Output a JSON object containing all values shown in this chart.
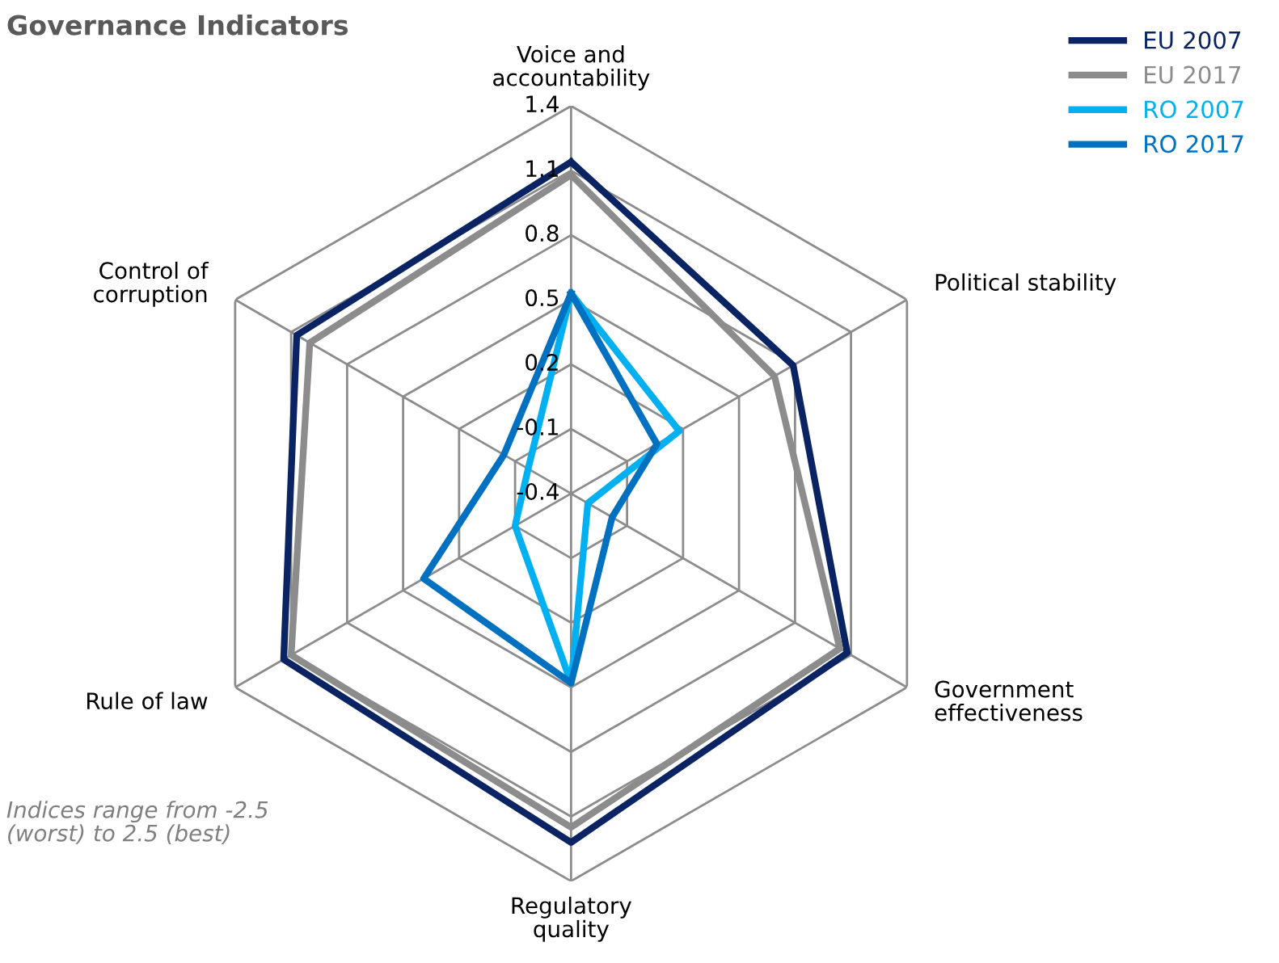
{
  "chart_data": {
    "type": "radar",
    "title": "Governance Indicators",
    "categories": [
      "Voice and\naccountability",
      "Political stability",
      "Government\neffectiveness",
      "Regulatory\nquality",
      "Rule of law",
      "Control of\ncorruption"
    ],
    "series": [
      {
        "name": "EU 2007",
        "color": "#0a2463",
        "values": [
          1.14,
          0.79,
          1.08,
          1.22,
          1.14,
          1.07
        ]
      },
      {
        "name": "EU 2017",
        "color": "#8c8c8c",
        "values": [
          1.08,
          0.69,
          1.04,
          1.15,
          1.1,
          1.0
        ]
      },
      {
        "name": "RO 2007",
        "color": "#00b0f0",
        "values": [
          0.53,
          0.18,
          -0.31,
          0.48,
          -0.1,
          -0.17
        ]
      },
      {
        "name": "RO 2017",
        "color": "#0070c0",
        "values": [
          0.53,
          0.06,
          -0.18,
          0.48,
          0.39,
          -0.04
        ]
      }
    ],
    "ylim": [
      -0.4,
      1.4
    ],
    "yticks": [
      -0.4,
      -0.1,
      0.2,
      0.5,
      0.8,
      1.1,
      1.4
    ],
    "grid": true,
    "legend": "top right",
    "line_style": "solid",
    "marker": "none",
    "annotations": [
      "Indices range from -2.5\n(worst) to 2.5 (best)"
    ]
  }
}
